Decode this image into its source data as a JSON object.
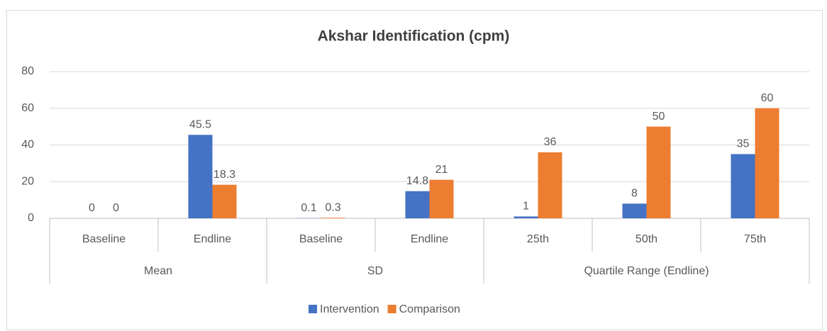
{
  "chart_data": {
    "type": "bar",
    "title": "Akshar Identification (cpm)",
    "groups": [
      {
        "name": "Mean",
        "categories": [
          "Baseline",
          "Endline"
        ]
      },
      {
        "name": "SD",
        "categories": [
          "Baseline",
          "Endline"
        ]
      },
      {
        "name": "Quartile Range (Endline)",
        "categories": [
          "25th",
          "50th",
          "75th"
        ]
      }
    ],
    "series": [
      {
        "name": "Intervention",
        "color": "#4472c4",
        "values": [
          0,
          45.5,
          0.1,
          14.8,
          1,
          8,
          35
        ]
      },
      {
        "name": "Comparison",
        "color": "#ed7d31",
        "values": [
          0,
          18.3,
          0.3,
          21,
          36,
          50,
          60
        ]
      }
    ],
    "ylim": [
      0,
      80
    ],
    "yticks": [
      0,
      20,
      40,
      60,
      80
    ],
    "grid": true,
    "legend": "bottom"
  }
}
